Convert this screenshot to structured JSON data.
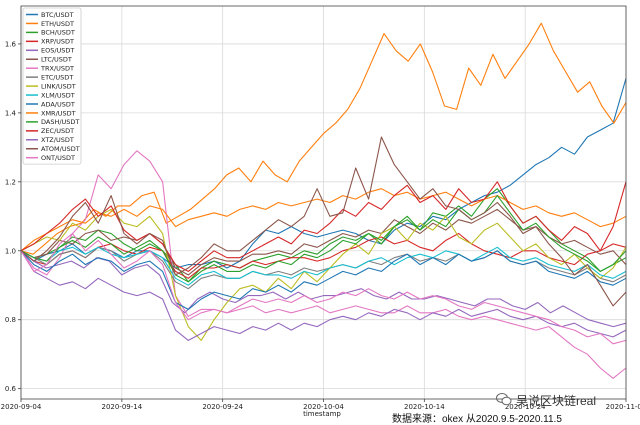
{
  "chart_data": {
    "type": "line",
    "xlabel": "timestamp",
    "ylabel": "",
    "x_ticks": [
      "2020-09-04",
      "2020-09-14",
      "2020-09-24",
      "2020-10-04",
      "2020-10-14",
      "2020-10-24",
      "2020-11-03"
    ],
    "ylim": [
      0.57,
      1.71
    ],
    "y_ticks": [
      "0.6",
      "0.8",
      "1.0",
      "1.2",
      "1.4",
      "1.6"
    ],
    "grid": true,
    "legend_position": "top-left",
    "series": [
      {
        "name": "BTC/USDT",
        "color": "#1f77b4",
        "values": [
          1.0,
          0.97,
          0.99,
          1.0,
          1.02,
          0.99,
          1.01,
          1.0,
          0.98,
          1.0,
          1.0,
          0.98,
          0.95,
          0.96,
          0.96,
          0.97,
          0.95,
          0.97,
          1.02,
          1.06,
          1.05,
          1.07,
          1.05,
          1.04,
          1.05,
          1.06,
          1.05,
          1.03,
          1.02,
          1.06,
          1.08,
          1.07,
          1.1,
          1.09,
          1.12,
          1.14,
          1.16,
          1.17,
          1.19,
          1.22,
          1.25,
          1.27,
          1.3,
          1.28,
          1.33,
          1.35,
          1.37,
          1.5
        ]
      },
      {
        "name": "ETH/USDT",
        "color": "#ff7f0e",
        "values": [
          1.0,
          0.99,
          1.02,
          1.05,
          1.07,
          1.08,
          1.12,
          1.1,
          1.13,
          1.13,
          1.16,
          1.17,
          1.08,
          1.1,
          1.12,
          1.15,
          1.18,
          1.22,
          1.24,
          1.2,
          1.26,
          1.22,
          1.2,
          1.26,
          1.3,
          1.34,
          1.37,
          1.41,
          1.47,
          1.55,
          1.63,
          1.58,
          1.55,
          1.6,
          1.52,
          1.42,
          1.41,
          1.53,
          1.48,
          1.57,
          1.5,
          1.55,
          1.6,
          1.66,
          1.58,
          1.52,
          1.46,
          1.49,
          1.42,
          1.37,
          1.43
        ]
      },
      {
        "name": "BCH/USDT",
        "color": "#2ca02c",
        "values": [
          1.0,
          0.98,
          0.99,
          1.01,
          1.04,
          1.03,
          1.06,
          1.05,
          1.02,
          1.0,
          1.02,
          1.0,
          0.96,
          0.91,
          0.95,
          0.97,
          0.96,
          0.95,
          0.97,
          0.98,
          0.99,
          0.98,
          1.0,
          0.99,
          1.02,
          1.04,
          1.03,
          1.05,
          1.02,
          1.07,
          1.09,
          1.06,
          1.11,
          1.1,
          1.13,
          1.1,
          1.15,
          1.18,
          1.13,
          1.08,
          1.1,
          1.06,
          1.02,
          1.0,
          0.98,
          0.94,
          0.96,
          0.98
        ]
      },
      {
        "name": "XRP/USDT",
        "color": "#d62728",
        "values": [
          1.0,
          0.97,
          0.96,
          0.99,
          1.0,
          0.98,
          1.01,
          1.02,
          1.0,
          0.99,
          1.01,
          1.0,
          0.94,
          0.92,
          0.95,
          0.95,
          0.96,
          0.95,
          0.97,
          0.96,
          0.97,
          0.98,
          0.98,
          0.97,
          0.98,
          1.0,
          1.01,
          1.03,
          1.04,
          1.02,
          1.03,
          1.01,
          1.0,
          1.03,
          1.05,
          1.02,
          1.0,
          0.99,
          0.98,
          1.0,
          1.0,
          0.98,
          0.97,
          0.96,
          0.99,
          1.0,
          1.02,
          1.01
        ]
      },
      {
        "name": "EOS/USDT",
        "color": "#9467bd",
        "values": [
          1.0,
          0.97,
          0.95,
          0.96,
          0.97,
          0.95,
          0.98,
          0.97,
          0.93,
          0.95,
          0.96,
          0.93,
          0.85,
          0.82,
          0.86,
          0.88,
          0.86,
          0.85,
          0.87,
          0.87,
          0.88,
          0.86,
          0.88,
          0.86,
          0.87,
          0.87,
          0.88,
          0.89,
          0.87,
          0.86,
          0.88,
          0.86,
          0.86,
          0.87,
          0.86,
          0.85,
          0.84,
          0.86,
          0.86,
          0.84,
          0.83,
          0.85,
          0.82,
          0.84,
          0.82,
          0.8,
          0.79,
          0.78,
          0.79
        ]
      },
      {
        "name": "LTC/USDT",
        "color": "#8c564b",
        "values": [
          1.0,
          0.98,
          0.99,
          1.03,
          1.02,
          1.05,
          1.06,
          1.03,
          1.04,
          1.03,
          1.05,
          1.02,
          0.95,
          0.93,
          0.96,
          0.98,
          0.97,
          0.97,
          0.99,
          0.99,
          1.0,
          0.99,
          1.02,
          1.01,
          1.03,
          1.05,
          1.04,
          1.06,
          1.05,
          1.09,
          1.07,
          1.05,
          1.08,
          1.06,
          1.09,
          1.08,
          1.1,
          1.12,
          1.09,
          1.06,
          1.07,
          1.04,
          1.02,
          1.03,
          1.01,
          0.99,
          1.0,
          0.96
        ]
      },
      {
        "name": "TRX/USDT",
        "color": "#e377c2",
        "values": [
          1.0,
          0.95,
          0.93,
          0.98,
          1.05,
          1.09,
          1.22,
          1.18,
          1.25,
          1.29,
          1.26,
          1.2,
          0.87,
          0.81,
          0.83,
          0.83,
          0.82,
          0.83,
          0.84,
          0.82,
          0.83,
          0.82,
          0.83,
          0.84,
          0.82,
          0.83,
          0.84,
          0.83,
          0.82,
          0.82,
          0.84,
          0.82,
          0.82,
          0.83,
          0.81,
          0.8,
          0.81,
          0.8,
          0.79,
          0.78,
          0.77,
          0.78,
          0.75,
          0.72,
          0.7,
          0.66,
          0.63,
          0.66
        ]
      },
      {
        "name": "ETC/USDT",
        "color": "#7f7f7f",
        "values": [
          1.0,
          0.98,
          0.96,
          0.99,
          1.0,
          0.98,
          1.01,
          1.0,
          0.97,
          0.99,
          1.0,
          0.97,
          0.91,
          0.89,
          0.92,
          0.93,
          0.92,
          0.92,
          0.94,
          0.93,
          0.94,
          0.93,
          0.95,
          0.94,
          0.95,
          0.96,
          0.95,
          0.97,
          0.96,
          0.98,
          0.99,
          0.97,
          0.98,
          0.97,
          0.99,
          0.97,
          0.98,
          1.0,
          0.97,
          0.96,
          0.97,
          0.95,
          0.94,
          0.93,
          0.95,
          0.92,
          0.91,
          0.93
        ]
      },
      {
        "name": "LINK/USDT",
        "color": "#bcbd22",
        "values": [
          1.0,
          1.02,
          1.04,
          1.03,
          1.08,
          1.06,
          1.1,
          1.12,
          1.08,
          1.07,
          1.1,
          1.05,
          0.87,
          0.78,
          0.74,
          0.8,
          0.85,
          0.89,
          0.9,
          0.88,
          0.92,
          0.89,
          0.94,
          0.91,
          0.95,
          0.99,
          1.02,
          0.99,
          1.05,
          1.07,
          1.03,
          1.08,
          1.06,
          1.1,
          1.04,
          1.02,
          1.06,
          1.08,
          1.04,
          1.0,
          1.02,
          0.98,
          0.96,
          0.99,
          0.95,
          0.92,
          0.95,
          1.01
        ]
      },
      {
        "name": "XLM/USDT",
        "color": "#17becf",
        "values": [
          1.0,
          0.98,
          0.97,
          1.0,
          1.01,
          0.99,
          1.01,
          0.99,
          0.98,
          0.99,
          1.0,
          0.98,
          0.92,
          0.9,
          0.93,
          0.94,
          0.92,
          0.92,
          0.94,
          0.93,
          0.93,
          0.92,
          0.94,
          0.93,
          0.95,
          0.96,
          0.95,
          0.97,
          0.98,
          0.96,
          0.98,
          0.99,
          0.98,
          1.0,
          0.99,
          0.97,
          0.99,
          1.01,
          0.98,
          0.97,
          0.98,
          0.96,
          0.95,
          0.94,
          0.96,
          0.93,
          0.92,
          0.94
        ]
      },
      {
        "name": "ADA/USDT",
        "color": "#1f77b4",
        "values": [
          1.0,
          0.96,
          0.94,
          0.97,
          0.99,
          0.96,
          0.98,
          0.97,
          0.94,
          0.96,
          0.97,
          0.94,
          0.85,
          0.83,
          0.86,
          0.88,
          0.87,
          0.86,
          0.89,
          0.88,
          0.9,
          0.88,
          0.91,
          0.9,
          0.92,
          0.94,
          0.93,
          0.95,
          0.94,
          0.97,
          0.99,
          0.96,
          0.98,
          0.96,
          0.99,
          0.97,
          0.98,
          1.0,
          0.97,
          0.96,
          0.97,
          0.94,
          0.93,
          0.92,
          0.94,
          0.91,
          0.9,
          0.92
        ]
      },
      {
        "name": "XMR/USDT",
        "color": "#ff7f0e",
        "values": [
          1.0,
          1.03,
          1.05,
          1.07,
          1.09,
          1.08,
          1.11,
          1.1,
          1.12,
          1.1,
          1.13,
          1.12,
          1.07,
          1.09,
          1.1,
          1.11,
          1.1,
          1.12,
          1.13,
          1.12,
          1.14,
          1.13,
          1.14,
          1.15,
          1.14,
          1.16,
          1.15,
          1.17,
          1.18,
          1.16,
          1.17,
          1.15,
          1.16,
          1.17,
          1.15,
          1.13,
          1.15,
          1.16,
          1.14,
          1.12,
          1.13,
          1.11,
          1.1,
          1.11,
          1.09,
          1.07,
          1.08,
          1.1
        ]
      },
      {
        "name": "DASH/USDT",
        "color": "#2ca02c",
        "values": [
          1.0,
          0.98,
          0.97,
          1.01,
          1.03,
          1.01,
          1.04,
          1.02,
          0.99,
          1.01,
          1.03,
          1.0,
          0.93,
          0.91,
          0.94,
          0.96,
          0.94,
          0.94,
          0.96,
          0.95,
          0.97,
          0.96,
          0.99,
          0.98,
          1.0,
          1.03,
          1.02,
          1.05,
          1.03,
          1.07,
          1.1,
          1.06,
          1.09,
          1.07,
          1.12,
          1.09,
          1.11,
          1.16,
          1.11,
          1.06,
          1.08,
          1.04,
          1.01,
          0.99,
          0.97,
          0.94,
          0.96,
          1.0
        ]
      },
      {
        "name": "ZEC/USDT",
        "color": "#d62728",
        "values": [
          1.0,
          1.02,
          1.05,
          1.08,
          1.12,
          1.15,
          1.1,
          1.13,
          1.06,
          1.03,
          1.05,
          1.02,
          0.96,
          0.94,
          0.97,
          1.0,
          0.98,
          0.98,
          1.0,
          1.02,
          1.04,
          1.02,
          1.06,
          1.05,
          1.08,
          1.12,
          1.1,
          1.14,
          1.12,
          1.16,
          1.19,
          1.14,
          1.16,
          1.12,
          1.18,
          1.14,
          1.15,
          1.2,
          1.13,
          1.08,
          1.1,
          1.06,
          1.03,
          1.07,
          1.05,
          1.0,
          1.07,
          1.2
        ]
      },
      {
        "name": "XTZ/USDT",
        "color": "#9467bd",
        "values": [
          1.0,
          0.94,
          0.92,
          0.9,
          0.91,
          0.89,
          0.92,
          0.9,
          0.88,
          0.87,
          0.88,
          0.86,
          0.77,
          0.74,
          0.76,
          0.78,
          0.77,
          0.76,
          0.78,
          0.77,
          0.79,
          0.77,
          0.79,
          0.78,
          0.8,
          0.81,
          0.8,
          0.82,
          0.81,
          0.83,
          0.82,
          0.8,
          0.82,
          0.81,
          0.83,
          0.81,
          0.82,
          0.83,
          0.81,
          0.8,
          0.81,
          0.79,
          0.78,
          0.79,
          0.77,
          0.76,
          0.75,
          0.77
        ]
      },
      {
        "name": "ATOM/USDT",
        "color": "#8c564b",
        "values": [
          1.0,
          0.97,
          1.0,
          1.04,
          1.1,
          1.14,
          1.08,
          1.16,
          1.05,
          1.02,
          1.05,
          1.03,
          0.93,
          0.95,
          0.98,
          1.02,
          1.0,
          1.0,
          1.03,
          1.06,
          1.09,
          1.07,
          1.1,
          1.18,
          1.1,
          1.11,
          1.24,
          1.15,
          1.33,
          1.25,
          1.2,
          1.15,
          1.18,
          1.13,
          1.12,
          1.09,
          1.11,
          1.14,
          1.1,
          1.05,
          1.07,
          1.02,
          0.98,
          0.93,
          0.96,
          0.9,
          0.84,
          0.88
        ]
      },
      {
        "name": "ONT/USDT",
        "color": "#e377c2",
        "values": [
          1.0,
          0.94,
          0.96,
          1.02,
          1.05,
          1.0,
          1.03,
          0.99,
          0.95,
          0.97,
          1.0,
          0.96,
          0.85,
          0.8,
          0.82,
          0.83,
          0.82,
          0.84,
          0.86,
          0.85,
          0.86,
          0.85,
          0.87,
          0.85,
          0.86,
          0.88,
          0.87,
          0.89,
          0.87,
          0.86,
          0.88,
          0.86,
          0.87,
          0.86,
          0.84,
          0.83,
          0.85,
          0.84,
          0.83,
          0.82,
          0.81,
          0.8,
          0.78,
          0.77,
          0.75,
          0.76,
          0.73,
          0.74
        ]
      }
    ]
  },
  "caption": {
    "source_text": "数据来源：okex 从2020.9.5-2020.11.5",
    "watermark_text": "吴说区块链real"
  }
}
